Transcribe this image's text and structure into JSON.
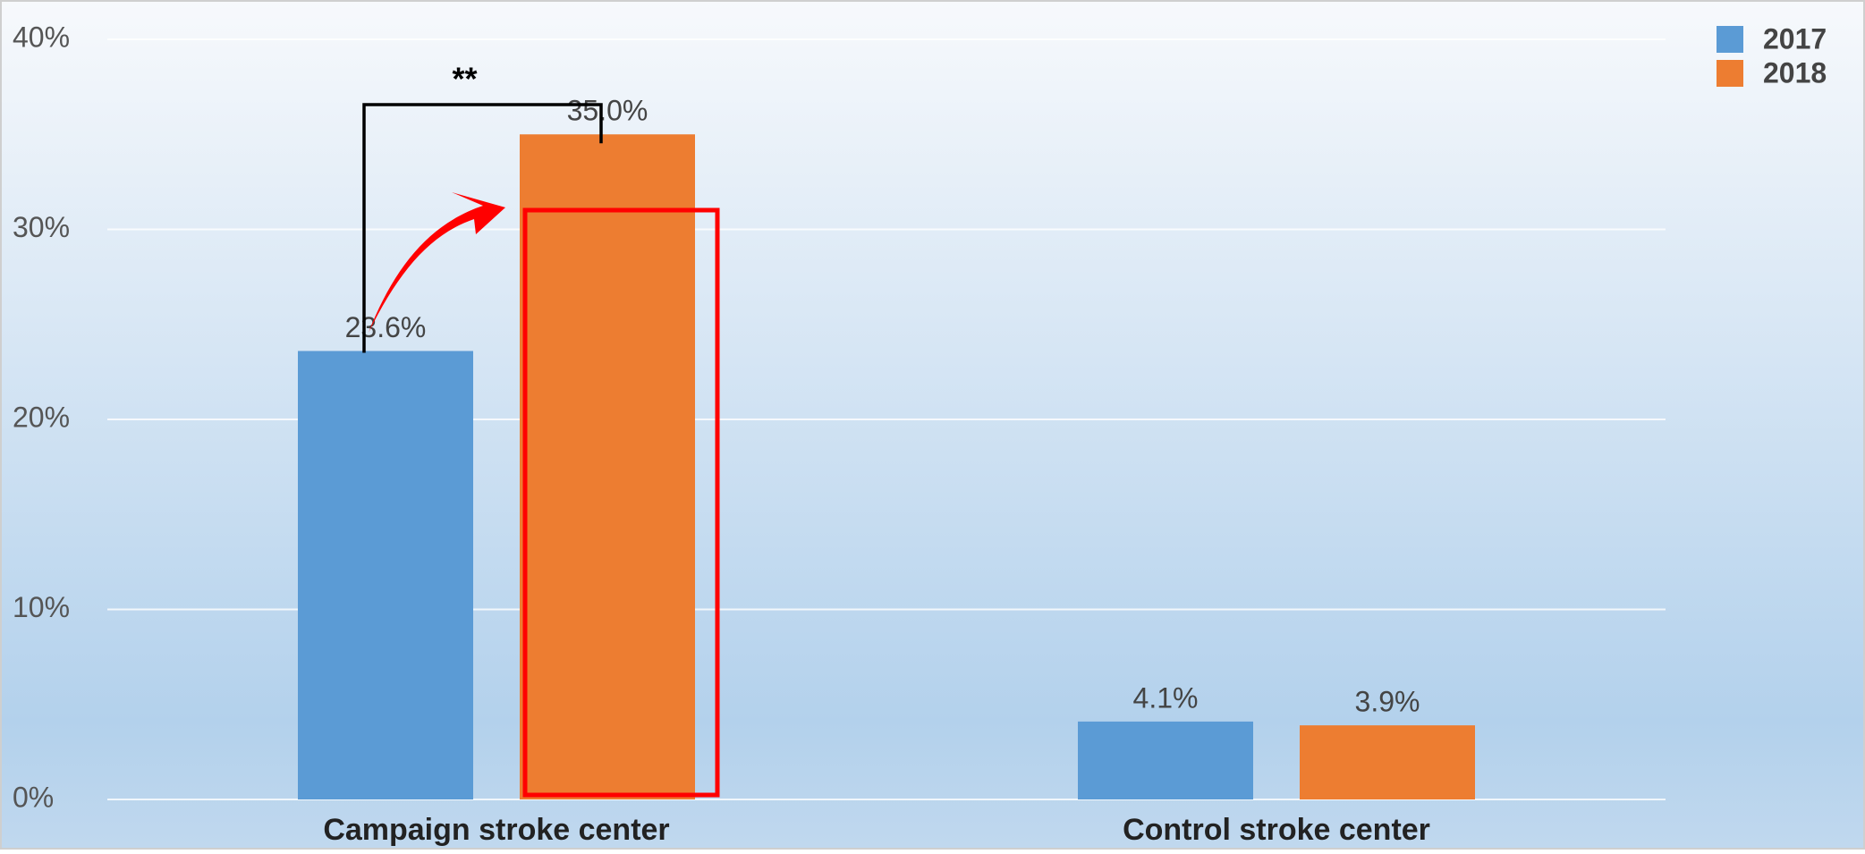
{
  "chart_data": {
    "type": "bar",
    "categories": [
      "Campaign stroke center",
      "Control stroke center"
    ],
    "series": [
      {
        "name": "2017",
        "color": "#5b9bd5",
        "values": [
          23.6,
          4.1
        ],
        "value_labels": [
          "23.6%",
          "4.1%"
        ]
      },
      {
        "name": "2018",
        "color": "#ed7d31",
        "values": [
          35.0,
          3.9
        ],
        "value_labels": [
          "35.0%",
          "3.9%"
        ]
      }
    ],
    "ylim": [
      0,
      40
    ],
    "yticks": [
      {
        "value": 0,
        "label": "0%"
      },
      {
        "value": 10,
        "label": "10%"
      },
      {
        "value": 20,
        "label": "20%"
      },
      {
        "value": 30,
        "label": "30%"
      },
      {
        "value": 40,
        "label": "40%"
      }
    ],
    "grid": true,
    "legend": "top-right",
    "annotation": "**"
  }
}
